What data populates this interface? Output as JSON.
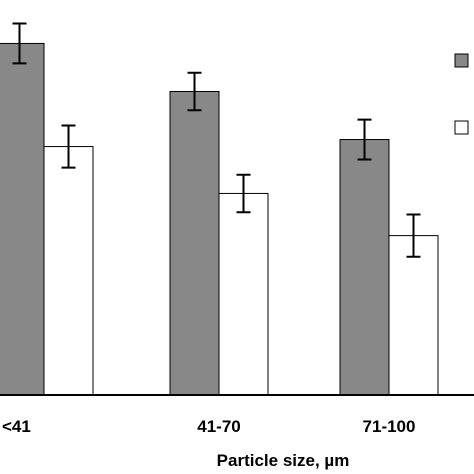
{
  "chart_data": {
    "type": "bar",
    "title": "",
    "xlabel": "Particle size, µm",
    "ylabel": "",
    "categories": [
      "<41",
      "41-70",
      "71-100"
    ],
    "ylim": [
      0,
      320
    ],
    "grid": false,
    "legend": "top-right",
    "series": [
      {
        "color": "#888888",
        "values": [
          300,
          259,
          218
        ],
        "errors": [
          17,
          16,
          17
        ]
      },
      {
        "color": "#ffffff",
        "values": [
          212,
          172,
          136
        ],
        "errors": [
          18,
          16,
          18
        ]
      }
    ]
  }
}
